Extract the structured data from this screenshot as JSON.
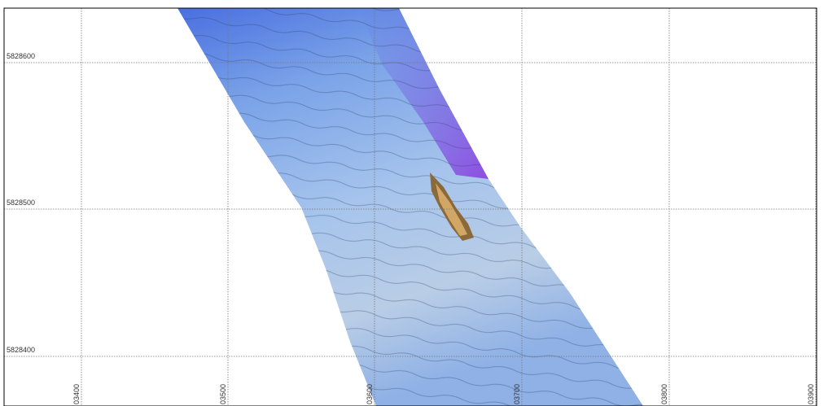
{
  "grid": {
    "northing_labels": [
      "5828600",
      "5828500",
      "5828400"
    ],
    "easting_labels": [
      "03400",
      "03500",
      "03600",
      "03700",
      "03800",
      "03900"
    ]
  }
}
